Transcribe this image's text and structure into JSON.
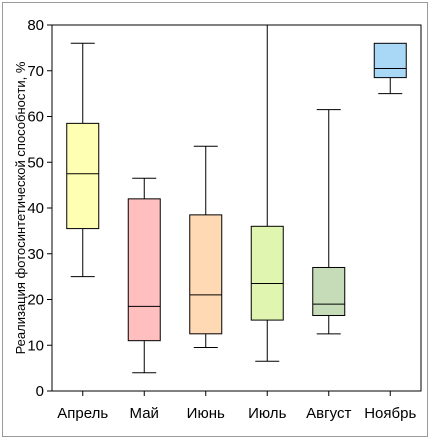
{
  "chart_data": {
    "type": "box",
    "ylabel": "Реализация фотосинтетической способности, %",
    "ylim": [
      0,
      80
    ],
    "yticks": [
      0,
      10,
      20,
      30,
      40,
      50,
      60,
      70,
      80
    ],
    "grid": false,
    "categories": [
      "Апрель",
      "Май",
      "Июнь",
      "Июль",
      "Август",
      "Ноябрь"
    ],
    "boxes": [
      {
        "category": "Апрель",
        "min": 25,
        "q1": 35.5,
        "median": 47.5,
        "q3": 58.5,
        "max": 76,
        "color": "#ffffb3"
      },
      {
        "category": "Май",
        "min": 4,
        "q1": 11,
        "median": 18.5,
        "q3": 42,
        "max": 46.5,
        "color": "#ffbfbf"
      },
      {
        "category": "Июнь",
        "min": 9.5,
        "q1": 12.5,
        "median": 21,
        "q3": 38.5,
        "max": 53.5,
        "color": "#ffd9b3"
      },
      {
        "category": "Июль",
        "min": 6.5,
        "q1": 15.5,
        "median": 23.5,
        "q3": 36,
        "max": 80,
        "color": "#e0f5b0"
      },
      {
        "category": "Август",
        "min": 12.5,
        "q1": 16.5,
        "median": 19,
        "q3": 27,
        "max": 61.5,
        "color": "#c6dcb8"
      },
      {
        "category": "Ноябрь",
        "min": 65,
        "q1": 68.5,
        "median": 70.5,
        "q3": 76,
        "max": 76,
        "color": "#a8d8f5"
      }
    ]
  }
}
